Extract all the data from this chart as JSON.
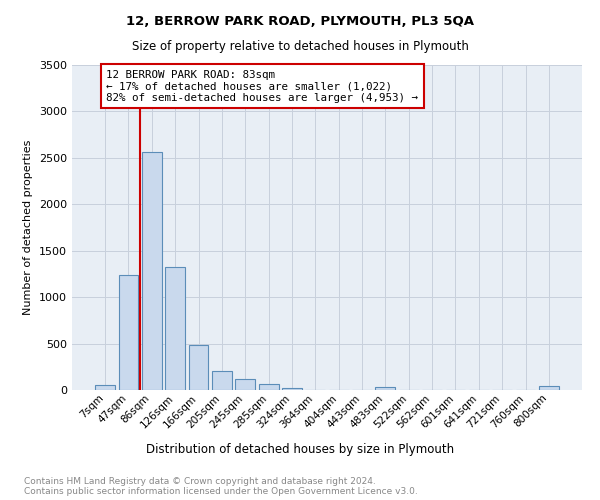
{
  "title": "12, BERROW PARK ROAD, PLYMOUTH, PL3 5QA",
  "subtitle": "Size of property relative to detached houses in Plymouth",
  "xlabel": "Distribution of detached houses by size in Plymouth",
  "ylabel": "Number of detached properties",
  "annotation_line1": "12 BERROW PARK ROAD: 83sqm",
  "annotation_line2": "← 17% of detached houses are smaller (1,022)",
  "annotation_line3": "82% of semi-detached houses are larger (4,953) →",
  "bar_color": "#c9d9ed",
  "bar_edge_color": "#5b8db8",
  "marker_line_color": "#cc0000",
  "annotation_box_color": "#cc0000",
  "categories": [
    "7sqm",
    "47sqm",
    "86sqm",
    "126sqm",
    "166sqm",
    "205sqm",
    "245sqm",
    "285sqm",
    "324sqm",
    "364sqm",
    "404sqm",
    "443sqm",
    "483sqm",
    "522sqm",
    "562sqm",
    "601sqm",
    "641sqm",
    "721sqm",
    "760sqm",
    "800sqm"
  ],
  "values": [
    50,
    1240,
    2560,
    1320,
    490,
    200,
    115,
    60,
    20,
    0,
    0,
    0,
    30,
    0,
    0,
    0,
    0,
    0,
    0,
    45
  ],
  "ylim": [
    0,
    3500
  ],
  "yticks": [
    0,
    500,
    1000,
    1500,
    2000,
    2500,
    3000,
    3500
  ],
  "marker_bin_index": 1,
  "footnote1": "Contains HM Land Registry data © Crown copyright and database right 2024.",
  "footnote2": "Contains public sector information licensed under the Open Government Licence v3.0.",
  "background_color": "#ffffff",
  "plot_bg_color": "#e8eef5",
  "grid_color": "#c8d0dc"
}
